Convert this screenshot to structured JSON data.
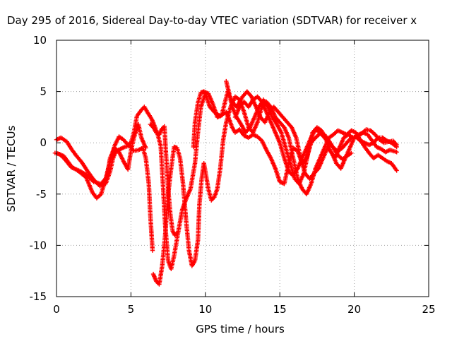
{
  "chart_data": {
    "type": "scatter",
    "title": "Day 295 of 2016, Sidereal Day-to-day VTEC variation (SDTVAR) for receiver x",
    "xlabel": "GPS time / hours",
    "ylabel": "SDTVAR / TECUs",
    "xlim": [
      0,
      25
    ],
    "ylim": [
      -15,
      10
    ],
    "xticks": [
      0,
      5,
      10,
      15,
      20,
      25
    ],
    "yticks": [
      -15,
      -10,
      -5,
      0,
      5,
      10
    ],
    "xtick_labels": [
      "0",
      "5",
      "10",
      "15",
      "20",
      "25"
    ],
    "ytick_labels": [
      "-15",
      "-10",
      "-5",
      "0",
      "5",
      "10"
    ],
    "grid": true,
    "marker": "+",
    "series": [
      {
        "color": "#ff0000",
        "points": [
          [
            0.0,
            0.3
          ],
          [
            0.3,
            0.5
          ],
          [
            0.7,
            0.1
          ],
          [
            1.0,
            -0.6
          ],
          [
            1.3,
            -1.2
          ],
          [
            1.7,
            -1.9
          ],
          [
            2.1,
            -2.8
          ],
          [
            2.5,
            -3.6
          ],
          [
            2.9,
            -4.2
          ],
          [
            3.3,
            -4.0
          ],
          [
            3.6,
            -2.8
          ],
          [
            3.8,
            -1.5
          ],
          [
            4.0,
            -0.8
          ],
          [
            4.3,
            -0.6
          ],
          [
            4.6,
            -0.4
          ],
          [
            4.9,
            -0.3
          ],
          [
            5.2,
            -0.8
          ],
          [
            5.5,
            -0.7
          ],
          [
            5.8,
            -0.5
          ],
          [
            6.0,
            -1.5
          ],
          [
            6.2,
            -4.0
          ],
          [
            6.3,
            -7.0
          ],
          [
            6.45,
            -10.5
          ]
        ]
      },
      {
        "color": "#ff0000",
        "points": [
          [
            0.0,
            -1.0
          ],
          [
            0.5,
            -1.3
          ],
          [
            1.0,
            -2.3
          ],
          [
            1.5,
            -2.8
          ],
          [
            2.0,
            -3.4
          ],
          [
            2.4,
            -4.8
          ],
          [
            2.7,
            -5.4
          ],
          [
            3.0,
            -5.0
          ],
          [
            3.3,
            -3.5
          ],
          [
            3.6,
            -1.8
          ],
          [
            3.9,
            -0.3
          ],
          [
            4.2,
            0.6
          ],
          [
            4.5,
            0.3
          ],
          [
            4.8,
            -0.2
          ],
          [
            5.0,
            0.0
          ],
          [
            5.2,
            1.0
          ],
          [
            5.4,
            2.6
          ],
          [
            5.7,
            3.2
          ],
          [
            5.9,
            3.5
          ],
          [
            6.1,
            3.0
          ],
          [
            6.4,
            2.3
          ],
          [
            6.6,
            1.6
          ],
          [
            6.8,
            0.8
          ],
          [
            7.0,
            -0.3
          ],
          [
            7.15,
            -4.0
          ],
          [
            7.3,
            -8.0
          ],
          [
            7.5,
            -11.5
          ],
          [
            7.7,
            -12.3
          ],
          [
            7.9,
            -11.0
          ],
          [
            8.2,
            -8.5
          ],
          [
            8.45,
            -6.5
          ],
          [
            8.7,
            -5.5
          ],
          [
            9.0,
            -4.5
          ],
          [
            9.3,
            -2.0
          ],
          [
            9.5,
            1.0
          ],
          [
            9.7,
            3.5
          ],
          [
            10.0,
            4.8
          ],
          [
            10.3,
            3.5
          ],
          [
            10.6,
            3.0
          ],
          [
            11.0,
            2.6
          ],
          [
            11.4,
            3.0
          ],
          [
            11.6,
            2.3
          ],
          [
            11.8,
            1.5
          ],
          [
            12.0,
            1.0
          ],
          [
            12.3,
            1.3
          ],
          [
            12.6,
            0.7
          ],
          [
            12.9,
            0.5
          ],
          [
            13.2,
            0.8
          ],
          [
            13.5,
            0.6
          ],
          [
            13.8,
            0.2
          ],
          [
            14.1,
            -0.7
          ],
          [
            14.4,
            -1.5
          ],
          [
            14.7,
            -2.5
          ],
          [
            15.0,
            -3.8
          ],
          [
            15.3,
            -4.0
          ],
          [
            15.6,
            -2.0
          ],
          [
            15.9,
            -0.5
          ],
          [
            16.2,
            -0.8
          ],
          [
            16.5,
            -2.0
          ],
          [
            16.8,
            -1.5
          ],
          [
            17.1,
            0.0
          ],
          [
            17.4,
            0.5
          ],
          [
            17.7,
            0.9
          ],
          [
            18.0,
            0.8
          ],
          [
            18.3,
            0.2
          ],
          [
            18.6,
            -0.5
          ],
          [
            18.9,
            -1.2
          ],
          [
            19.2,
            -1.6
          ],
          [
            19.5,
            -1.3
          ],
          [
            19.8,
            -1.0
          ]
        ]
      },
      {
        "color": "#ff0000",
        "points": [
          [
            -0.1,
            -1.0
          ],
          [
            0.2,
            -1.1
          ],
          [
            0.5,
            -1.5
          ],
          [
            1.0,
            -2.4
          ],
          [
            1.5,
            -2.7
          ],
          [
            2.0,
            -3.1
          ],
          [
            2.5,
            -3.8
          ],
          [
            3.0,
            -4.0
          ],
          [
            3.4,
            -3.3
          ],
          [
            3.6,
            -1.5
          ],
          [
            3.9,
            -0.5
          ],
          [
            4.2,
            -0.9
          ],
          [
            4.5,
            -1.8
          ],
          [
            4.8,
            -2.6
          ],
          [
            5.0,
            -0.8
          ],
          [
            5.2,
            0.5
          ],
          [
            5.5,
            1.8
          ],
          [
            5.7,
            0.5
          ],
          [
            6.0,
            -0.5
          ]
        ]
      },
      {
        "color": "#ff0000",
        "points": [
          [
            6.3,
            1.8
          ],
          [
            6.5,
            1.5
          ],
          [
            6.7,
            1.0
          ],
          [
            6.9,
            0.8
          ],
          [
            7.1,
            1.4
          ],
          [
            7.25,
            1.6
          ],
          [
            7.35,
            -1.0
          ],
          [
            7.5,
            -4.5
          ],
          [
            7.65,
            -7.0
          ],
          [
            7.8,
            -8.6
          ],
          [
            7.95,
            -9.0
          ],
          [
            8.1,
            -8.8
          ]
        ]
      },
      {
        "color": "#ff0000",
        "points": [
          [
            6.5,
            -12.8
          ],
          [
            6.7,
            -13.5
          ],
          [
            6.9,
            -13.8
          ],
          [
            7.1,
            -12.0
          ],
          [
            7.3,
            -9.0
          ],
          [
            7.5,
            -5.0
          ],
          [
            7.7,
            -2.5
          ],
          [
            7.9,
            -0.4
          ],
          [
            8.1,
            -0.5
          ],
          [
            8.3,
            -1.5
          ],
          [
            8.5,
            -4.0
          ],
          [
            8.7,
            -7.5
          ],
          [
            8.9,
            -10.5
          ],
          [
            9.1,
            -12.0
          ],
          [
            9.3,
            -11.5
          ],
          [
            9.5,
            -9.5
          ],
          [
            9.6,
            -6.0
          ],
          [
            9.75,
            -3.5
          ],
          [
            9.9,
            -2.0
          ],
          [
            10.0,
            -2.8
          ],
          [
            10.2,
            -4.5
          ],
          [
            10.4,
            -5.6
          ],
          [
            10.6,
            -5.3
          ],
          [
            10.8,
            -4.5
          ],
          [
            11.0,
            -2.5
          ],
          [
            11.2,
            0.3
          ],
          [
            11.4,
            2.0
          ],
          [
            11.7,
            3.5
          ],
          [
            12.0,
            4.5
          ],
          [
            12.3,
            4.2
          ],
          [
            12.6,
            3.0
          ],
          [
            12.9,
            1.5
          ],
          [
            13.2,
            1.0
          ],
          [
            13.5,
            2.0
          ],
          [
            13.8,
            3.5
          ],
          [
            14.1,
            4.0
          ],
          [
            14.4,
            3.5
          ],
          [
            14.7,
            2.5
          ],
          [
            15.0,
            2.0
          ],
          [
            15.3,
            1.5
          ],
          [
            15.6,
            0.5
          ],
          [
            15.9,
            -1.5
          ],
          [
            16.2,
            -3.5
          ],
          [
            16.5,
            -4.5
          ],
          [
            16.8,
            -5.0
          ],
          [
            17.1,
            -4.0
          ],
          [
            17.4,
            -2.5
          ],
          [
            17.7,
            -1.5
          ],
          [
            18.0,
            -0.5
          ],
          [
            18.3,
            0.5
          ],
          [
            18.6,
            0.8
          ],
          [
            18.9,
            1.2
          ],
          [
            19.2,
            1.0
          ],
          [
            19.5,
            0.8
          ],
          [
            19.8,
            1.2
          ],
          [
            20.1,
            1.0
          ],
          [
            20.4,
            0.3
          ],
          [
            20.7,
            -0.4
          ],
          [
            21.0,
            -1.0
          ],
          [
            21.3,
            -1.5
          ],
          [
            21.6,
            -1.2
          ],
          [
            21.9,
            -1.5
          ],
          [
            22.2,
            -1.8
          ],
          [
            22.5,
            -2.0
          ],
          [
            22.85,
            -2.7
          ]
        ]
      },
      {
        "color": "#ff0000",
        "points": [
          [
            9.2,
            -0.4
          ],
          [
            9.3,
            2.0
          ],
          [
            9.5,
            3.9
          ],
          [
            9.7,
            4.9
          ],
          [
            9.9,
            5.0
          ],
          [
            10.2,
            4.8
          ],
          [
            10.5,
            3.8
          ],
          [
            10.8,
            2.5
          ],
          [
            11.1,
            2.7
          ],
          [
            11.5,
            5.0
          ],
          [
            11.8,
            4.0
          ],
          [
            12.1,
            3.5
          ],
          [
            12.5,
            4.5
          ],
          [
            12.8,
            5.0
          ],
          [
            13.1,
            4.5
          ],
          [
            13.4,
            3.5
          ],
          [
            13.7,
            2.5
          ],
          [
            14.0,
            2.0
          ],
          [
            14.3,
            3.0
          ],
          [
            14.6,
            3.5
          ],
          [
            14.9,
            3.0
          ],
          [
            15.2,
            2.5
          ],
          [
            15.5,
            2.0
          ],
          [
            15.8,
            1.5
          ],
          [
            16.1,
            0.5
          ],
          [
            16.4,
            -1.5
          ],
          [
            16.7,
            -3.0
          ],
          [
            17.0,
            -3.5
          ],
          [
            17.3,
            -3.0
          ],
          [
            17.6,
            -2.5
          ],
          [
            17.9,
            -1.5
          ],
          [
            18.2,
            -0.5
          ],
          [
            18.5,
            -1.0
          ],
          [
            18.8,
            -2.0
          ],
          [
            19.1,
            -2.5
          ],
          [
            19.4,
            -1.5
          ],
          [
            19.7,
            -0.5
          ],
          [
            20.0,
            0.5
          ],
          [
            20.3,
            0.8
          ],
          [
            20.6,
            1.0
          ],
          [
            20.9,
            0.8
          ],
          [
            21.2,
            0.2
          ],
          [
            21.5,
            -0.4
          ],
          [
            21.8,
            -0.6
          ],
          [
            22.1,
            -0.9
          ],
          [
            22.4,
            -0.7
          ],
          [
            22.85,
            -0.9
          ]
        ]
      },
      {
        "color": "#ff0000",
        "points": [
          [
            12.0,
            2.5
          ],
          [
            12.3,
            3.5
          ],
          [
            12.6,
            4.0
          ],
          [
            12.9,
            3.5
          ],
          [
            13.2,
            4.2
          ],
          [
            13.5,
            4.5
          ],
          [
            13.8,
            4.0
          ],
          [
            14.1,
            3.0
          ],
          [
            14.4,
            2.0
          ],
          [
            14.7,
            1.0
          ],
          [
            15.0,
            0.0
          ],
          [
            15.3,
            -1.5
          ],
          [
            15.6,
            -2.8
          ],
          [
            15.9,
            -3.2
          ],
          [
            16.2,
            -2.5
          ],
          [
            16.5,
            -1.5
          ],
          [
            16.8,
            -0.5
          ],
          [
            17.1,
            0.5
          ],
          [
            17.4,
            1.3
          ],
          [
            17.7,
            1.0
          ],
          [
            18.0,
            0.5
          ],
          [
            18.3,
            0.0
          ],
          [
            18.6,
            -0.5
          ],
          [
            18.9,
            -0.8
          ],
          [
            19.2,
            -0.5
          ],
          [
            19.5,
            0.0
          ],
          [
            19.8,
            0.5
          ],
          [
            20.1,
            0.6
          ],
          [
            20.4,
            0.2
          ],
          [
            20.7,
            0.0
          ],
          [
            21.0,
            -0.2
          ],
          [
            21.3,
            0.0
          ],
          [
            21.6,
            0.5
          ],
          [
            21.9,
            0.5
          ],
          [
            22.2,
            0.2
          ],
          [
            22.5,
            0.0
          ],
          [
            22.85,
            -0.4
          ]
        ]
      },
      {
        "color": "#ff0000",
        "points": [
          [
            11.4,
            6.0
          ],
          [
            11.6,
            4.8
          ],
          [
            11.8,
            3.5
          ],
          [
            12.1,
            2.5
          ],
          [
            12.4,
            1.8
          ],
          [
            12.7,
            1.0
          ],
          [
            13.0,
            1.5
          ],
          [
            13.3,
            2.5
          ],
          [
            13.6,
            3.5
          ],
          [
            13.9,
            4.2
          ],
          [
            14.2,
            3.5
          ],
          [
            14.5,
            2.5
          ],
          [
            14.8,
            1.8
          ],
          [
            15.1,
            1.0
          ],
          [
            15.4,
            -0.5
          ],
          [
            15.7,
            -2.0
          ],
          [
            16.0,
            -3.5
          ],
          [
            16.3,
            -4.0
          ],
          [
            16.6,
            -3.0
          ],
          [
            16.9,
            -1.0
          ],
          [
            17.2,
            1.0
          ],
          [
            17.5,
            1.5
          ],
          [
            17.8,
            1.2
          ],
          [
            18.1,
            0.3
          ],
          [
            18.4,
            -0.8
          ],
          [
            18.7,
            -1.5
          ],
          [
            19.0,
            -0.5
          ],
          [
            19.3,
            0.5
          ],
          [
            19.6,
            0.8
          ],
          [
            19.9,
            0.5
          ],
          [
            20.2,
            0.6
          ],
          [
            20.5,
            0.9
          ],
          [
            20.8,
            1.3
          ],
          [
            21.1,
            1.2
          ],
          [
            21.4,
            0.8
          ],
          [
            21.7,
            0.3
          ],
          [
            22.0,
            0.0
          ],
          [
            22.3,
            0.1
          ],
          [
            22.6,
            0.2
          ],
          [
            22.85,
            -0.2
          ]
        ]
      }
    ]
  }
}
